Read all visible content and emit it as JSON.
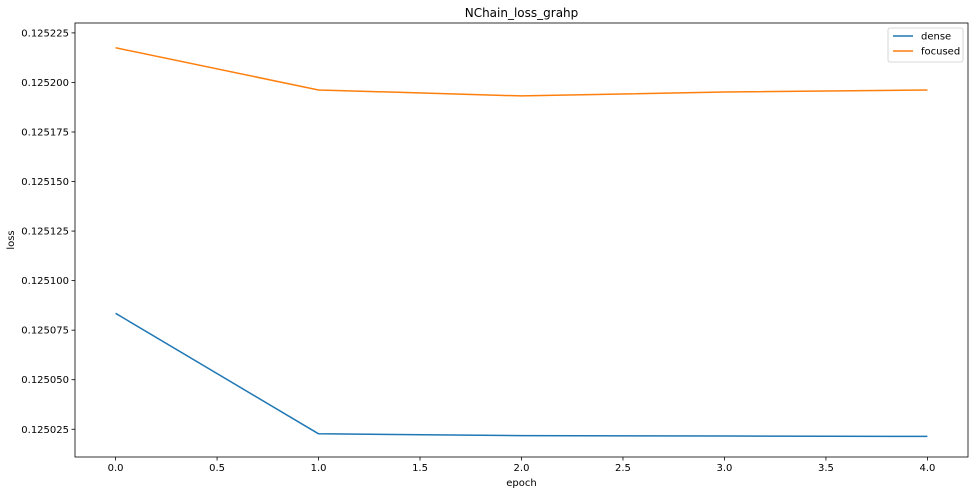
{
  "chart_data": {
    "type": "line",
    "title": "NChain_loss_grahp",
    "xlabel": "epoch",
    "ylabel": "loss",
    "x": [
      0,
      1,
      2,
      3,
      4
    ],
    "xlim": [
      -0.2,
      4.2
    ],
    "ylim": [
      0.125011,
      0.12523
    ],
    "xticks": [
      0.0,
      0.5,
      1.0,
      1.5,
      2.0,
      2.5,
      3.0,
      3.5,
      4.0
    ],
    "xtick_labels": [
      "0.0",
      "0.5",
      "1.0",
      "1.5",
      "2.0",
      "2.5",
      "3.0",
      "3.5",
      "4.0"
    ],
    "yticks": [
      0.125025,
      0.12505,
      0.125075,
      0.1251,
      0.125125,
      0.12515,
      0.125175,
      0.1252,
      0.125225
    ],
    "ytick_labels": [
      "0.125025",
      "0.125050",
      "0.125075",
      "0.125100",
      "0.125125",
      "0.125150",
      "0.125175",
      "0.125200",
      "0.125225"
    ],
    "grid": false,
    "legend_position": "top-right",
    "series": [
      {
        "name": "dense",
        "color": "#1f77b4",
        "values": [
          0.1250835,
          0.1250227,
          0.1250218,
          0.1250216,
          0.1250214
        ]
      },
      {
        "name": "focused",
        "color": "#ff7f0e",
        "values": [
          0.1252175,
          0.1251962,
          0.1251932,
          0.1251952,
          0.1251962
        ]
      }
    ]
  }
}
